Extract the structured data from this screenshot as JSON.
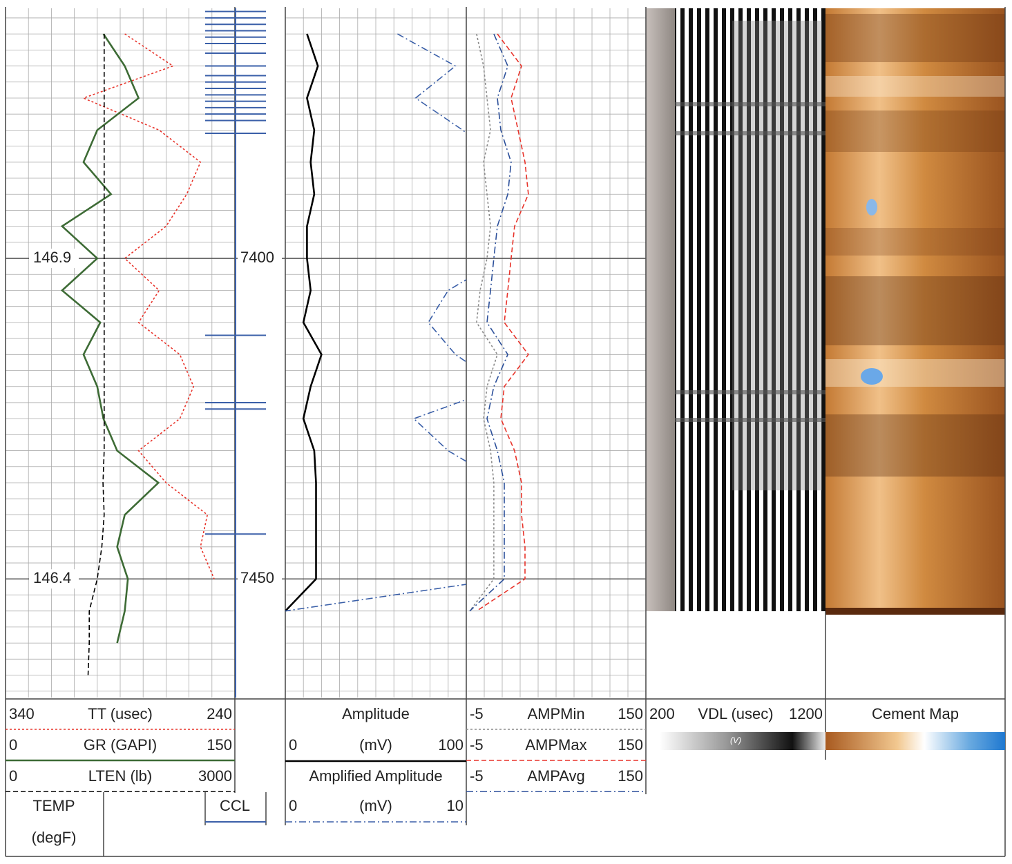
{
  "chart_data": {
    "type": "well-log",
    "ylim": [
      7361,
      7468.5
    ],
    "depth_labels": [
      7400,
      7450
    ],
    "temp_labels": [
      146.9,
      146.4
    ],
    "depth": [
      7365,
      7370,
      7375,
      7380,
      7385,
      7390,
      7395,
      7400,
      7405,
      7410,
      7415,
      7420,
      7425,
      7430,
      7435,
      7440,
      7445,
      7450,
      7455,
      7460,
      7465
    ],
    "tracks": [
      {
        "curves": [
          {
            "name": "TT (usec)",
            "color": "#e8332a",
            "line_style": "dotted",
            "xlim": [
              340,
              240
            ],
            "values": [
              288,
              267,
              306,
              273,
              255,
              261,
              270,
              288,
              273,
              282,
              264,
              258,
              264,
              282,
              270,
              252,
              255,
              249,
              null,
              null,
              null
            ]
          },
          {
            "name": "GR (GAPI)",
            "color": "#3d6b35",
            "line_style": "solid",
            "xlim": [
              0,
              150
            ],
            "values": [
              64,
              78,
              87,
              60,
              51,
              69,
              37,
              60,
              37,
              62,
              51,
              60,
              64,
              73,
              100,
              78,
              73,
              80,
              78,
              73,
              null
            ]
          },
          {
            "name": "LTEN (lb)",
            "color": "#000000",
            "line_style": "dashed",
            "xlim": [
              0,
              3000
            ]
          },
          {
            "name": "TEMP",
            "unit": "(degF)",
            "color": "#000000",
            "line_style": "dashed",
            "xlim": [
              146,
              148
            ],
            "values": [
              146.86,
              146.86,
              146.86,
              146.86,
              146.86,
              146.86,
              146.86,
              146.86,
              146.86,
              146.86,
              146.86,
              146.86,
              146.86,
              146.86,
              146.85,
              146.86,
              146.84,
              146.8,
              146.73,
              146.73,
              146.72
            ]
          }
        ]
      },
      {
        "curves": [
          {
            "name": "Amplitude",
            "unit": "(mV)",
            "color": "#000000",
            "line_style": "solid",
            "xlim": [
              0,
              100
            ],
            "values": [
              12,
              18,
              12,
              16,
              14,
              16,
              12,
              12,
              14,
              10,
              20,
              14,
              10,
              16,
              17,
              17,
              17,
              17,
              0,
              null,
              null
            ]
          },
          {
            "name": "Amplified Amplitude",
            "unit": "(mV)",
            "color": "#3a5fa8",
            "line_style": "dashdot",
            "xlim": [
              0,
              10
            ],
            "values": [
              6.2,
              9.4,
              7.2,
              9.8,
              12,
              12,
              12,
              12,
              9.0,
              7.9,
              9.4,
              12,
              7.1,
              9.0,
              12,
              12,
              12,
              12,
              0,
              null,
              null
            ]
          }
        ]
      },
      {
        "curves": [
          {
            "name": "AMPMin",
            "color": "#8a8a8a",
            "line_style": "dotted",
            "xlim": [
              -5,
              150
            ],
            "values": [
              3.9,
              9.9,
              12.9,
              15.9,
              9.9,
              12.9,
              15.9,
              12.9,
              6.9,
              3.9,
              21.8,
              12.9,
              9.9,
              15.9,
              18.8,
              18.8,
              18.8,
              18.8,
              -2.0,
              null,
              null
            ]
          },
          {
            "name": "AMPMax",
            "color": "#e8332a",
            "line_style": "dashed",
            "xlim": [
              -5,
              150
            ],
            "values": [
              21.8,
              42.7,
              33.7,
              39.7,
              45.7,
              48.6,
              36.7,
              33.7,
              30.8,
              27.8,
              48.6,
              27.8,
              24.8,
              36.7,
              42.7,
              42.7,
              45.7,
              45.7,
              3.9,
              null,
              null
            ]
          },
          {
            "name": "AMPAvg",
            "color": "#2b4f9a",
            "line_style": "dashdot",
            "xlim": [
              -5,
              150
            ],
            "values": [
              18.8,
              30.8,
              21.8,
              24.8,
              33.7,
              30.8,
              21.8,
              18.8,
              15.9,
              12.9,
              30.8,
              18.8,
              12.9,
              21.8,
              27.8,
              27.8,
              27.8,
              27.8,
              -2.0,
              null,
              null
            ]
          }
        ]
      }
    ],
    "ccl": {
      "name": "CCL",
      "color": "#3a5fa8",
      "spikes": [
        7361.5,
        7362.5,
        7363.5,
        7364.5,
        7365.5,
        7366.5,
        7368,
        7370,
        7371.5,
        7372.5,
        7373.5,
        7374.5,
        7375.5,
        7376.5,
        7377.5,
        7378.5,
        7380.5,
        7412,
        7422.5,
        7423.5,
        7443
      ]
    },
    "vdl": {
      "name": "VDL (usec)",
      "xlim": [
        200,
        1200
      ],
      "colorbar_label": "(V)"
    },
    "cement_map": {
      "name": "Cement Map"
    }
  }
}
